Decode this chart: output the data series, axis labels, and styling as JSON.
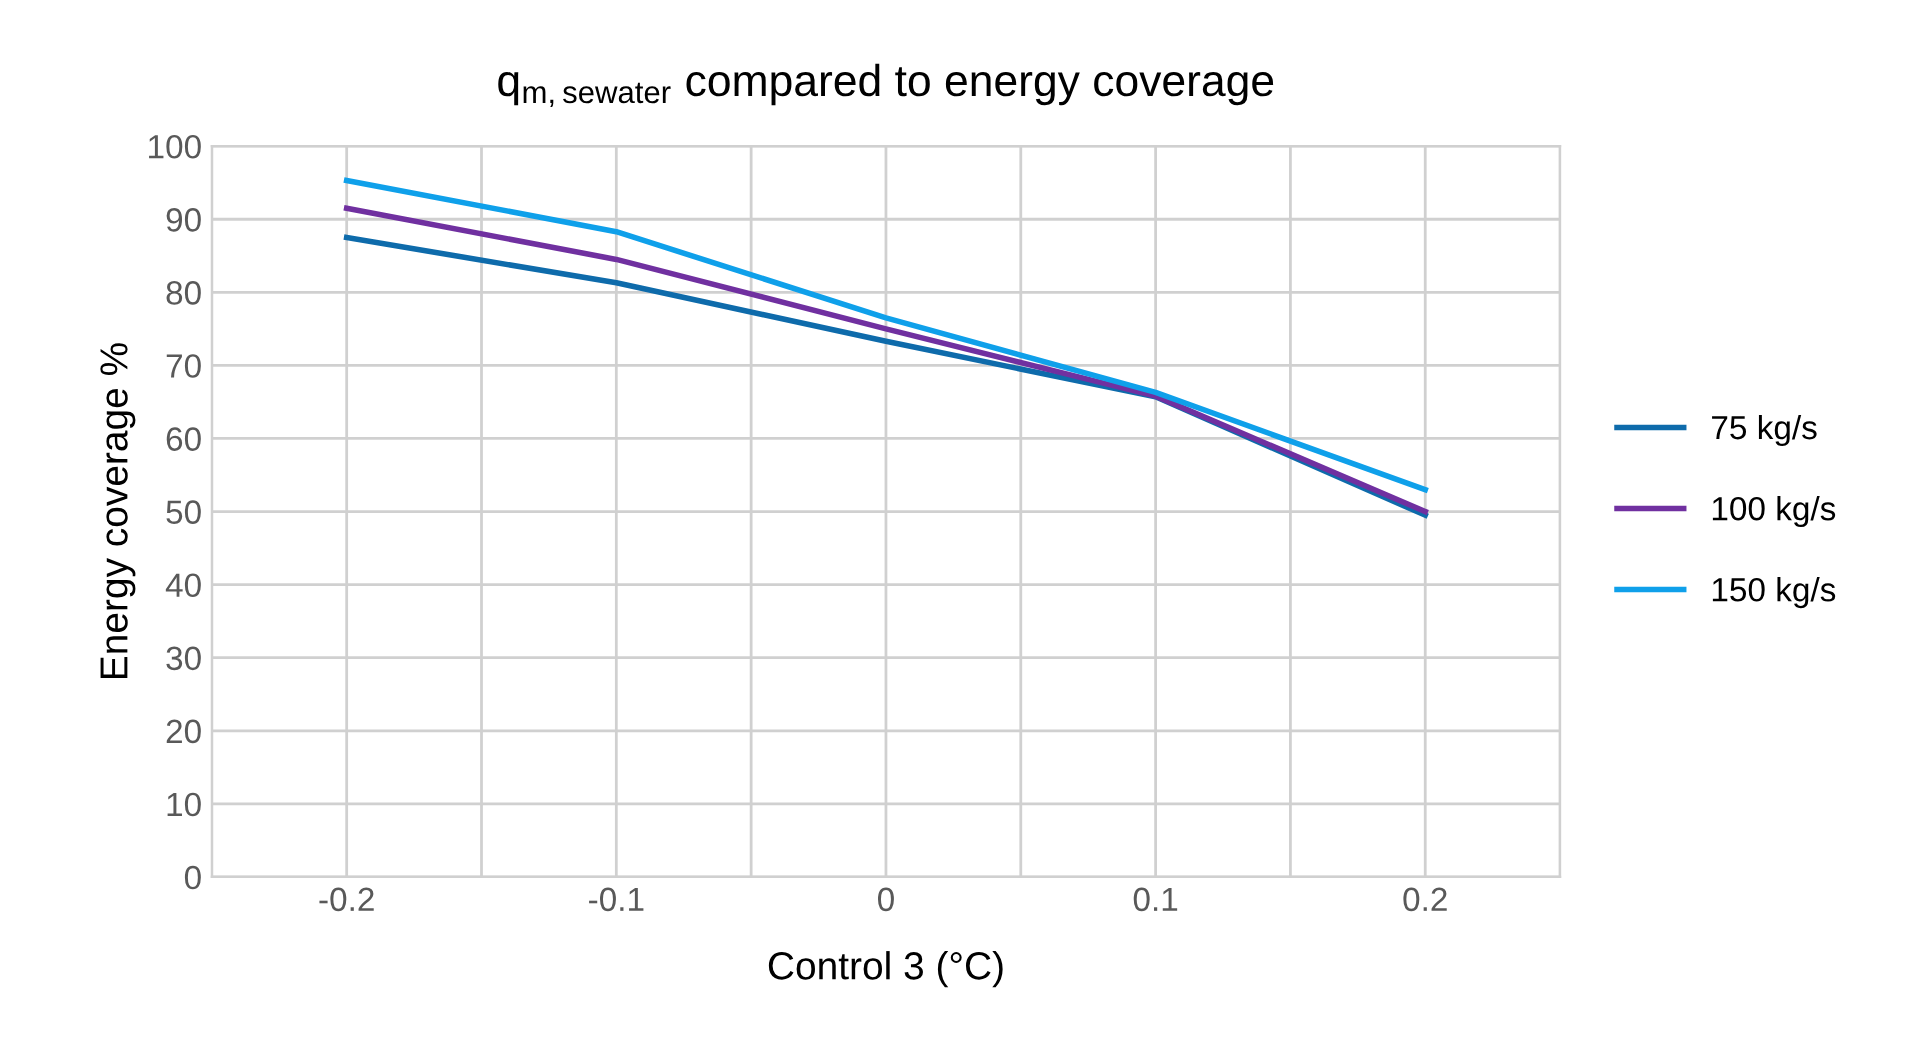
{
  "chart_data": {
    "type": "line",
    "title": "q$_{m,sewater}$ compared to energy coverage",
    "xlabel": "Control 3 (°C)",
    "ylabel": "Energy coverage %",
    "x": [
      -0.2,
      -0.1,
      0,
      0.1,
      0.2
    ],
    "series": [
      {
        "name": "75 kg/s",
        "color": "#0e6bab",
        "values": [
          87.5,
          81.3,
          73.3,
          65.7,
          49.5
        ]
      },
      {
        "name": "100 kg/s",
        "color": "#7030a0",
        "values": [
          91.5,
          84.5,
          75.0,
          65.8,
          50.0
        ]
      },
      {
        "name": "150 kg/s",
        "color": "#0fa0ea",
        "values": [
          95.3,
          88.3,
          76.5,
          66.3,
          53.0
        ]
      }
    ],
    "xlim": [
      -0.25,
      0.25
    ],
    "xticks": [
      {
        "value": -0.25,
        "label": null
      },
      -0.2,
      {
        "value": -0.15,
        "label": null
      },
      -0.1,
      {
        "value": -0.05,
        "label": null
      },
      0,
      {
        "value": 0.05,
        "label": null
      },
      0.1,
      {
        "value": 0.15,
        "label": null
      },
      0.2,
      {
        "value": 0.25,
        "label": null
      }
    ],
    "ylim": [
      0,
      100
    ],
    "yticks": [
      0,
      10,
      20,
      30,
      40,
      50,
      60,
      70,
      80,
      90,
      100
    ],
    "grid": true,
    "legend": "right",
    "marker": "none",
    "line_style": "solid"
  }
}
